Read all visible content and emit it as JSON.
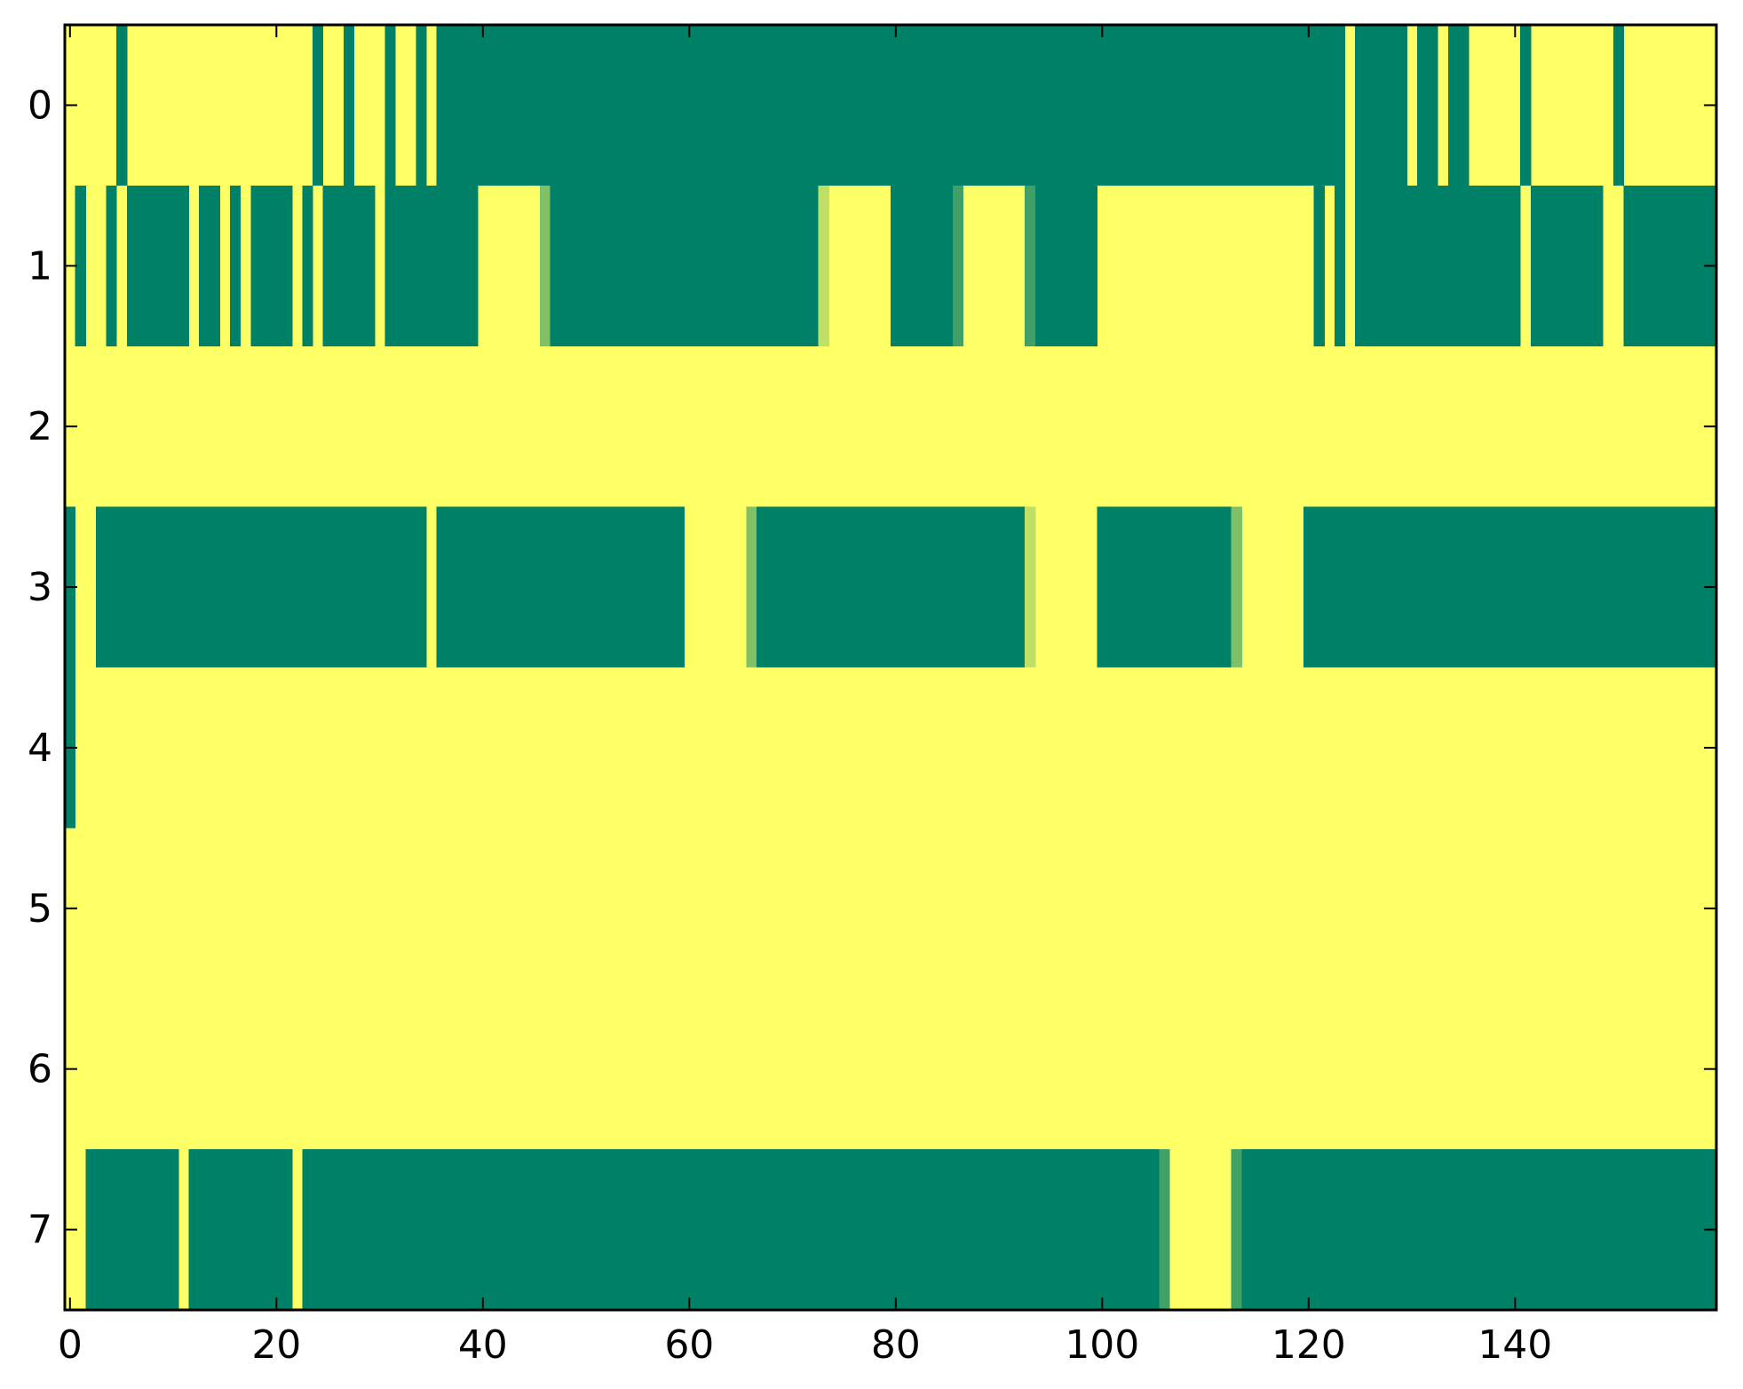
{
  "chart_data": {
    "type": "heatmap",
    "title": "",
    "xlabel": "",
    "ylabel": "",
    "rows": 8,
    "columns": 160,
    "xlim": [
      -0.5,
      159.5
    ],
    "ylim": [
      7.5,
      -0.5
    ],
    "x_ticks": [
      0,
      20,
      40,
      60,
      80,
      100,
      120,
      140
    ],
    "x_tick_labels": [
      "0",
      "20",
      "40",
      "60",
      "80",
      "100",
      "120",
      "140"
    ],
    "y_ticks": [
      0,
      1,
      2,
      3,
      4,
      5,
      6,
      7
    ],
    "y_tick_labels": [
      "0",
      "1",
      "2",
      "3",
      "4",
      "5",
      "6",
      "7"
    ],
    "grid": false,
    "colorbar": false,
    "colormap": "summer",
    "colors": {
      "low": "#008066",
      "high": "#ffff66",
      "mid_low": "#4ca366",
      "mid_high": "#b2d966",
      "axes": "#000000"
    },
    "cell_values": "0 = low, 1 = high",
    "background_value": 1,
    "cells": [
      {
        "row": 0,
        "segments": [
          [
            5,
            5,
            0
          ],
          [
            24,
            24,
            0
          ],
          [
            27,
            27,
            0
          ],
          [
            31,
            31,
            0
          ],
          [
            34,
            34,
            0
          ],
          [
            36,
            123,
            0
          ],
          [
            125,
            129,
            0
          ],
          [
            131,
            132,
            0
          ],
          [
            134,
            135,
            0
          ],
          [
            141,
            141,
            0
          ],
          [
            150,
            150,
            0
          ]
        ]
      },
      {
        "row": 1,
        "segments": [
          [
            1,
            1,
            0
          ],
          [
            4,
            4,
            0
          ],
          [
            6,
            11,
            0
          ],
          [
            13,
            14,
            0
          ],
          [
            16,
            16,
            0
          ],
          [
            18,
            21,
            0
          ],
          [
            23,
            23,
            0
          ],
          [
            25,
            29,
            0
          ],
          [
            31,
            39,
            0
          ],
          [
            46,
            46,
            0.5
          ],
          [
            47,
            72,
            0
          ],
          [
            73,
            73,
            0.75
          ],
          [
            80,
            85,
            0
          ],
          [
            86,
            86,
            0.25
          ],
          [
            93,
            93,
            0.25
          ],
          [
            94,
            99,
            0
          ],
          [
            121,
            121,
            0
          ],
          [
            123,
            123,
            0
          ],
          [
            125,
            140,
            0
          ],
          [
            142,
            148,
            0
          ],
          [
            151,
            159,
            0
          ]
        ]
      },
      {
        "row": 2,
        "segments": []
      },
      {
        "row": 3,
        "segments": [
          [
            0,
            0,
            0
          ],
          [
            3,
            34,
            0
          ],
          [
            36,
            59,
            0
          ],
          [
            66,
            66,
            0.5
          ],
          [
            67,
            92,
            0
          ],
          [
            93,
            93,
            0.75
          ],
          [
            100,
            112,
            0
          ],
          [
            113,
            113,
            0.5
          ],
          [
            120,
            159,
            0
          ]
        ]
      },
      {
        "row": 4,
        "segments": [
          [
            0,
            0,
            0
          ]
        ]
      },
      {
        "row": 5,
        "segments": []
      },
      {
        "row": 6,
        "segments": []
      },
      {
        "row": 7,
        "segments": [
          [
            2,
            10,
            0
          ],
          [
            12,
            21,
            0
          ],
          [
            23,
            105,
            0
          ],
          [
            106,
            106,
            0.25
          ],
          [
            113,
            113,
            0.25
          ],
          [
            114,
            159,
            0
          ]
        ]
      }
    ]
  }
}
